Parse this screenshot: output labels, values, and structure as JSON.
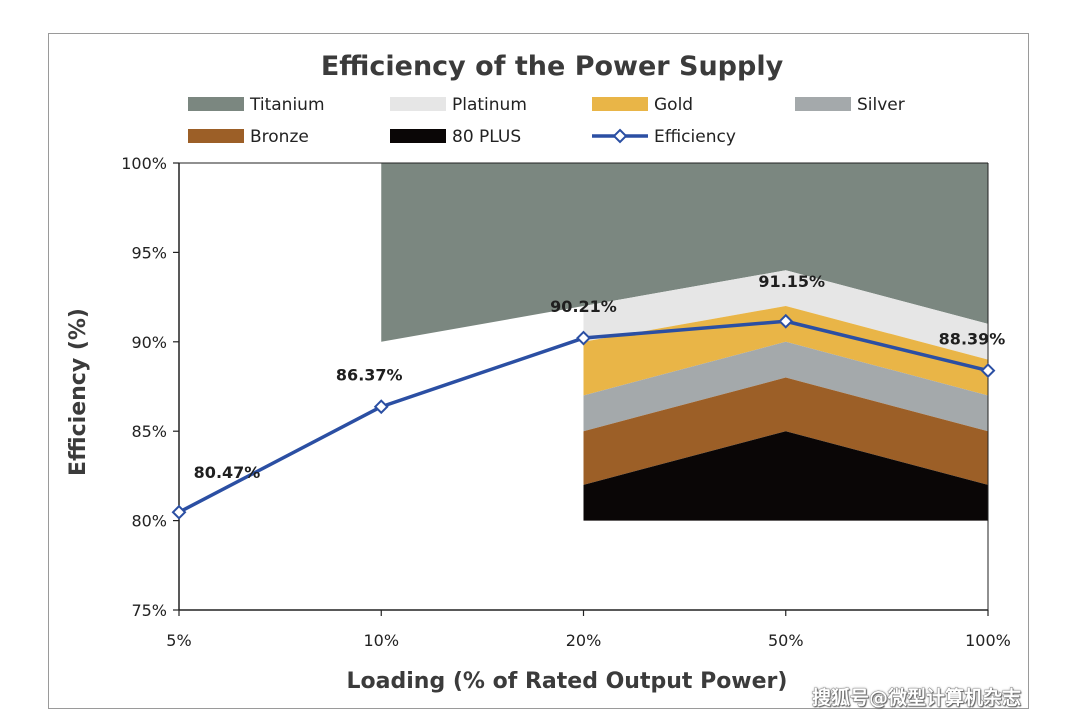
{
  "watermark": "搜狐号@微型计算机杂志",
  "chart_data": {
    "type": "line",
    "title": "Efficiency of the Power Supply",
    "xlabel": "Loading (% of Rated Output Power)",
    "ylabel": "Efficiency (%)",
    "categories": [
      "5%",
      "10%",
      "20%",
      "50%",
      "100%"
    ],
    "ylim": [
      75,
      100
    ],
    "yticks": [
      75,
      80,
      85,
      90,
      95,
      100
    ],
    "ytick_labels": [
      "75%",
      "80%",
      "85%",
      "90%",
      "95%",
      "100%"
    ],
    "grid": false,
    "legend_position": "top",
    "series": [
      {
        "name": "Efficiency",
        "values": [
          80.47,
          86.37,
          90.21,
          91.15,
          88.39
        ],
        "labels": [
          "80.47%",
          "86.37%",
          "90.21%",
          "91.15%",
          "88.39%"
        ],
        "color": "#2b4fa3",
        "marker": "diamond-open"
      }
    ],
    "bands": [
      {
        "name": "Titanium",
        "color": "#7b8780",
        "upper": [
          null,
          100,
          100,
          100,
          100
        ],
        "lower": [
          null,
          90,
          92,
          94,
          91
        ]
      },
      {
        "name": "Platinum",
        "color": "#e6e6e6",
        "upper": [
          null,
          null,
          92,
          94,
          91
        ],
        "lower": [
          null,
          null,
          90,
          92,
          89
        ]
      },
      {
        "name": "Gold",
        "color": "#e9b547",
        "upper": [
          null,
          null,
          90,
          92,
          89
        ],
        "lower": [
          null,
          null,
          87,
          90,
          87
        ]
      },
      {
        "name": "Silver",
        "color": "#a4a9ab",
        "upper": [
          null,
          null,
          87,
          90,
          87
        ],
        "lower": [
          null,
          null,
          85,
          88,
          85
        ]
      },
      {
        "name": "Bronze",
        "color": "#9c5f27",
        "upper": [
          null,
          null,
          85,
          88,
          85
        ],
        "lower": [
          null,
          null,
          82,
          85,
          82
        ]
      },
      {
        "name": "80 PLUS",
        "color": "#0a0606",
        "upper": [
          null,
          null,
          82,
          85,
          82
        ],
        "lower": [
          null,
          null,
          80,
          80,
          80
        ]
      }
    ],
    "legend": [
      {
        "name": "Titanium",
        "kind": "swatch",
        "color": "#7b8780"
      },
      {
        "name": "Platinum",
        "kind": "swatch",
        "color": "#e6e6e6"
      },
      {
        "name": "Gold",
        "kind": "swatch",
        "color": "#e9b547"
      },
      {
        "name": "Silver",
        "kind": "swatch",
        "color": "#a4a9ab"
      },
      {
        "name": "Bronze",
        "kind": "swatch",
        "color": "#9c5f27"
      },
      {
        "name": "80 PLUS",
        "kind": "swatch",
        "color": "#0a0606"
      },
      {
        "name": "Efficiency",
        "kind": "line",
        "color": "#2b4fa3"
      }
    ]
  }
}
